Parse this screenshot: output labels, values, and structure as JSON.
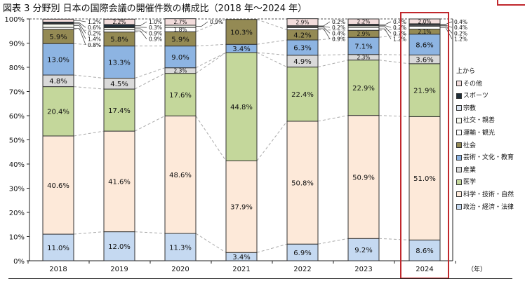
{
  "title": "図表 3 分野別  日本の国際会議の開催件数の構成比（2018 年～2024 年）",
  "chart_data": {
    "type": "bar",
    "stacked": true,
    "title": "図表 3 分野別  日本の国際会議の開催件数の構成比（2018 年～2024 年）",
    "xlabel": "（年）",
    "ylabel": "",
    "ylim": [
      0,
      100
    ],
    "yticks": [
      "0%",
      "10%",
      "20%",
      "30%",
      "40%",
      "50%",
      "60%",
      "70%",
      "80%",
      "90%",
      "100%"
    ],
    "categories": [
      "2018",
      "2019",
      "2020",
      "2021",
      "2022",
      "2023",
      "2024"
    ],
    "highlight": "2024",
    "legend_title": "上から",
    "legend_placement": "right",
    "series": [
      {
        "name": "政治・経済・法律",
        "color": "#c5d9f1",
        "values": [
          11.0,
          12.0,
          11.3,
          3.4,
          6.9,
          9.2,
          8.6
        ]
      },
      {
        "name": "科学・技術・自然",
        "color": "#fde9d9",
        "values": [
          40.6,
          41.6,
          48.6,
          37.9,
          50.8,
          50.9,
          51.0
        ]
      },
      {
        "name": "医学",
        "color": "#c4d79b",
        "values": [
          20.4,
          17.4,
          17.6,
          44.8,
          22.4,
          22.9,
          21.9
        ]
      },
      {
        "name": "産業",
        "color": "#d9d9d9",
        "values": [
          4.8,
          4.5,
          2.3,
          0,
          4.9,
          2.3,
          3.6
        ]
      },
      {
        "name": "芸術・文化・教育",
        "color": "#8db4e2",
        "values": [
          13.0,
          13.3,
          9.0,
          3.4,
          6.3,
          7.1,
          8.6
        ]
      },
      {
        "name": "社会",
        "color": "#948a54",
        "values": [
          5.9,
          5.8,
          5.9,
          10.3,
          4.2,
          2.9,
          2.1
        ]
      },
      {
        "name": "運輸・観光",
        "color": "#ffffff",
        "values": [
          0.8,
          0.9,
          1.8,
          0,
          0.9,
          1.2,
          1.2
        ]
      },
      {
        "name": "社交・親善",
        "color": "#f7f9ef",
        "values": [
          1.4,
          0.9,
          0.9,
          0,
          0.4,
          0.7,
          0.2
        ]
      },
      {
        "name": "宗教",
        "color": "#dbe5f1",
        "values": [
          0.2,
          0.3,
          0,
          0,
          0.2,
          0.2,
          0.4
        ]
      },
      {
        "name": "スポーツ",
        "color": "#1f2f3a",
        "values": [
          0.6,
          1.0,
          0,
          0,
          0.2,
          0.4,
          0.4
        ]
      },
      {
        "name": "その他",
        "color": "#f2dcdb",
        "values": [
          1.2,
          2.2,
          2.7,
          0,
          2.9,
          2.2,
          2.0
        ]
      }
    ],
    "legend_order": [
      "その他",
      "スポーツ",
      "宗教",
      "社交・親善",
      "運輸・観光",
      "社会",
      "芸術・文化・教育",
      "産業",
      "医学",
      "科学・技術・自然",
      "政治・経済・法律"
    ],
    "highlight_color": "#c0282d"
  }
}
